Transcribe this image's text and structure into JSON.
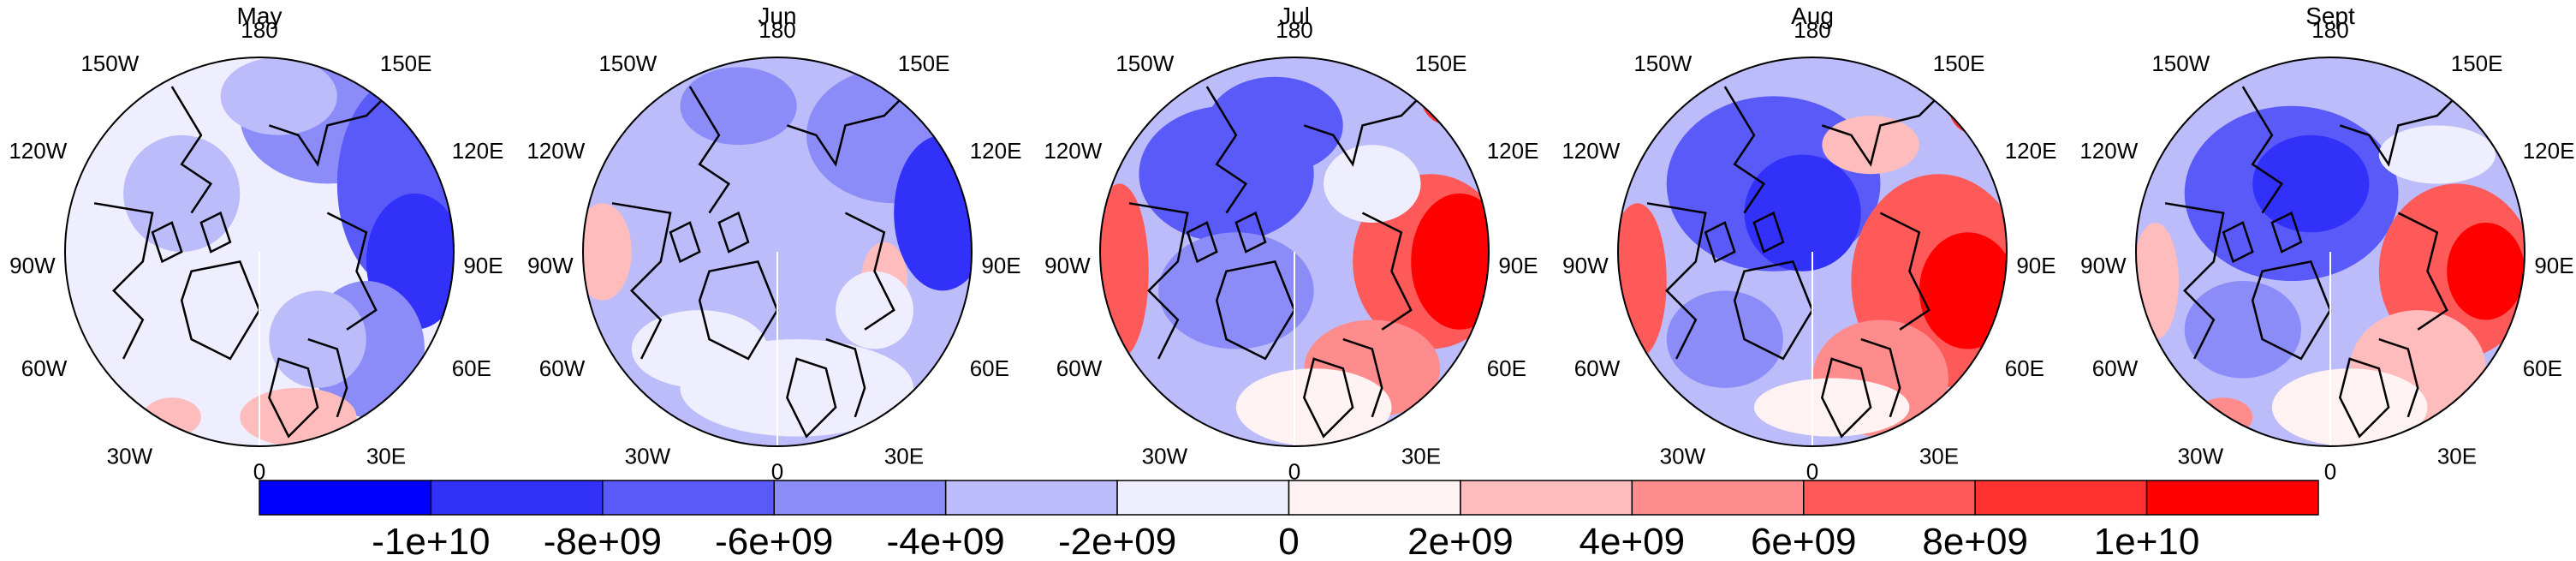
{
  "panels": [
    {
      "month": "May",
      "pattern": "may"
    },
    {
      "month": "Jun",
      "pattern": "jun"
    },
    {
      "month": "Jul",
      "pattern": "jul"
    },
    {
      "month": "Aug",
      "pattern": "aug"
    },
    {
      "month": "Sept",
      "pattern": "sept"
    }
  ],
  "longitude_labels": {
    "top": "180",
    "top_left": "150W",
    "top_right": "150E",
    "upper_left": "120W",
    "upper_right": "120E",
    "left": "90W",
    "right": "90E",
    "lower_left": "60W",
    "lower_right": "60E",
    "bottom_left": "30W",
    "bottom_right": "30E",
    "bottom": "0"
  },
  "colorbar": {
    "colors": [
      "#0000ff",
      "#3131fa",
      "#5a5af8",
      "#8c8cf8",
      "#bcbcfb",
      "#eeeefe",
      "#fff2f2",
      "#ffbcbc",
      "#ff8c8c",
      "#ff5a5a",
      "#ff3131",
      "#ff0000"
    ],
    "labels": [
      "-1e+10",
      "-8e+09",
      "-6e+09",
      "-4e+09",
      "-2e+09",
      "0",
      "2e+09",
      "4e+09",
      "6e+09",
      "8e+09",
      "1e+10"
    ]
  }
}
